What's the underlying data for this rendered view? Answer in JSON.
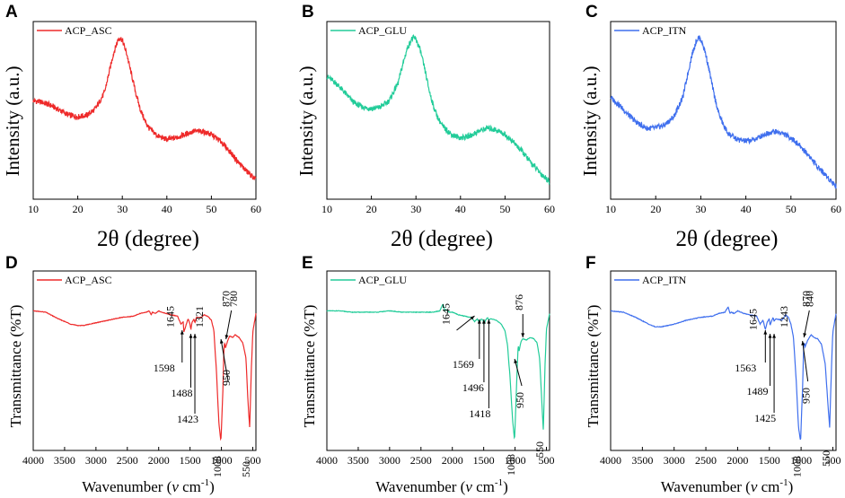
{
  "chart_data": [
    {
      "panel": "A",
      "type": "line",
      "kind": "xrd",
      "legend": "ACP_ASC",
      "color": "#ee2a2a",
      "xlabel": "2θ (degree)",
      "ylabel": "Intensity (a.u.)",
      "xlim": [
        10,
        60
      ],
      "xticks": [
        "10",
        "20",
        "30",
        "40",
        "50",
        "60"
      ],
      "x": [
        10,
        12,
        14,
        16,
        18,
        20,
        22,
        24,
        26,
        27,
        28,
        29,
        29.5,
        30,
        31,
        32,
        33,
        34,
        35,
        36,
        38,
        40,
        42,
        44,
        46,
        48,
        50,
        52,
        54,
        56,
        58,
        60
      ],
      "y": [
        0.61,
        0.6,
        0.58,
        0.55,
        0.52,
        0.51,
        0.52,
        0.56,
        0.66,
        0.78,
        0.9,
        0.985,
        1.0,
        0.985,
        0.9,
        0.78,
        0.66,
        0.56,
        0.49,
        0.44,
        0.39,
        0.37,
        0.38,
        0.4,
        0.42,
        0.42,
        0.4,
        0.36,
        0.3,
        0.23,
        0.17,
        0.12
      ],
      "ylim": [
        0,
        1.1
      ]
    },
    {
      "panel": "B",
      "type": "line",
      "kind": "xrd",
      "legend": "ACP_GLU",
      "color": "#22cc99",
      "xlabel": "2θ (degree)",
      "ylabel": "Intensity (a.u.)",
      "xlim": [
        10,
        60
      ],
      "xticks": [
        "10",
        "20",
        "30",
        "40",
        "50",
        "60"
      ],
      "x": [
        10,
        12,
        14,
        16,
        18,
        20,
        22,
        24,
        26,
        27,
        28,
        29,
        29.5,
        30,
        31,
        32,
        33,
        34,
        35,
        36,
        38,
        40,
        42,
        44,
        46,
        48,
        50,
        52,
        54,
        56,
        58,
        60
      ],
      "y": [
        0.76,
        0.72,
        0.66,
        0.6,
        0.57,
        0.56,
        0.57,
        0.61,
        0.72,
        0.83,
        0.93,
        0.99,
        1.0,
        0.99,
        0.92,
        0.8,
        0.67,
        0.57,
        0.5,
        0.45,
        0.4,
        0.38,
        0.39,
        0.42,
        0.44,
        0.43,
        0.4,
        0.35,
        0.29,
        0.22,
        0.16,
        0.11
      ],
      "ylim": [
        0,
        1.1
      ]
    },
    {
      "panel": "C",
      "type": "line",
      "kind": "xrd",
      "legend": "ACP_ITN",
      "color": "#3f6fee",
      "xlabel": "2θ (degree)",
      "ylabel": "Intensity (a.u.)",
      "xlim": [
        10,
        60
      ],
      "xticks": [
        "10",
        "20",
        "30",
        "40",
        "50",
        "60"
      ],
      "x": [
        10,
        12,
        14,
        16,
        18,
        20,
        22,
        24,
        26,
        27,
        28,
        29,
        29.5,
        30,
        31,
        32,
        33,
        34,
        35,
        36,
        38,
        40,
        42,
        44,
        46,
        48,
        50,
        52,
        54,
        56,
        58,
        60
      ],
      "y": [
        0.63,
        0.58,
        0.52,
        0.47,
        0.44,
        0.44,
        0.46,
        0.51,
        0.63,
        0.76,
        0.89,
        0.98,
        1.0,
        0.99,
        0.91,
        0.78,
        0.64,
        0.53,
        0.46,
        0.41,
        0.37,
        0.36,
        0.37,
        0.4,
        0.42,
        0.41,
        0.38,
        0.33,
        0.27,
        0.2,
        0.14,
        0.08
      ],
      "ylim": [
        0,
        1.1
      ]
    },
    {
      "panel": "D",
      "type": "line",
      "kind": "ftir",
      "legend": "ACP_ASC",
      "color": "#ee2a2a",
      "xlabel": "Wavenumber (",
      "xlabel_var": "v",
      "xlabel_unit": " cm",
      "xlabel_sup": "-1",
      "xlabel_close": ")",
      "ylabel": "Transmittance (%T)",
      "xlim": [
        4000,
        450
      ],
      "xticks": [
        "4000",
        "3500",
        "3000",
        "2500",
        "2000",
        "1500",
        "1000",
        "500"
      ],
      "x": [
        4000,
        3800,
        3600,
        3400,
        3300,
        3200,
        3000,
        2800,
        2600,
        2400,
        2300,
        2200,
        2150,
        2120,
        2100,
        2050,
        2000,
        1950,
        1800,
        1700,
        1645,
        1610,
        1598,
        1560,
        1530,
        1500,
        1488,
        1470,
        1440,
        1423,
        1400,
        1321,
        1280,
        1220,
        1160,
        1120,
        1080,
        1040,
        1008,
        975,
        960,
        950,
        935,
        905,
        870,
        820,
        780,
        720,
        660,
        610,
        580,
        550,
        520,
        500,
        450
      ],
      "y": [
        1.0,
        0.99,
        0.94,
        0.9,
        0.89,
        0.89,
        0.91,
        0.93,
        0.95,
        0.96,
        0.98,
        0.99,
        1.0,
        0.97,
        0.99,
        0.98,
        1.0,
        0.99,
        0.97,
        0.96,
        0.9,
        0.92,
        0.84,
        0.9,
        0.94,
        0.9,
        0.86,
        0.91,
        0.94,
        0.91,
        0.95,
        0.95,
        0.97,
        0.96,
        0.93,
        0.85,
        0.55,
        0.15,
        0.02,
        0.42,
        0.72,
        0.76,
        0.72,
        0.77,
        0.81,
        0.8,
        0.82,
        0.8,
        0.76,
        0.65,
        0.35,
        0.12,
        0.6,
        0.84,
        0.98
      ],
      "ylim": [
        -0.05,
        1.3
      ],
      "annotations": [
        {
          "label": "1645",
          "x": 1645
        },
        {
          "label": "1598",
          "x": 1598
        },
        {
          "label": "1488",
          "x": 1488
        },
        {
          "label": "1423",
          "x": 1423
        },
        {
          "label": "1321",
          "x": 1321
        },
        {
          "label": "1008",
          "x": 1008
        },
        {
          "label": "950",
          "x": 950
        },
        {
          "label": "870",
          "x": 870
        },
        {
          "label": "780",
          "x": 780
        },
        {
          "label": "550",
          "x": 550
        }
      ]
    },
    {
      "panel": "E",
      "type": "line",
      "kind": "ftir",
      "legend": "ACP_GLU",
      "color": "#22cc99",
      "xlabel": "Wavenumber (",
      "xlabel_var": "v",
      "xlabel_unit": " cm",
      "xlabel_sup": "-1",
      "xlabel_close": ")",
      "ylabel": "Transmittance (%T)",
      "xlim": [
        4000,
        450
      ],
      "xticks": [
        "4000",
        "3500",
        "3000",
        "2500",
        "2000",
        "1500",
        "1000",
        "500"
      ],
      "x": [
        4000,
        3800,
        3600,
        3400,
        3200,
        3000,
        2800,
        2600,
        2400,
        2300,
        2200,
        2150,
        2120,
        2100,
        2050,
        2000,
        1900,
        1800,
        1700,
        1645,
        1600,
        1569,
        1540,
        1510,
        1496,
        1470,
        1440,
        1418,
        1390,
        1300,
        1220,
        1160,
        1120,
        1080,
        1040,
        1008,
        975,
        955,
        950,
        935,
        905,
        876,
        820,
        760,
        700,
        650,
        610,
        580,
        550,
        520,
        500,
        450
      ],
      "y": [
        1.0,
        1.0,
        0.99,
        0.99,
        0.99,
        1.0,
        0.99,
        0.99,
        0.99,
        0.99,
        1.0,
        1.05,
        1.0,
        1.01,
        0.99,
        0.99,
        0.97,
        0.96,
        0.95,
        0.92,
        0.94,
        0.91,
        0.94,
        0.93,
        0.9,
        0.93,
        0.95,
        0.93,
        0.94,
        0.93,
        0.9,
        0.85,
        0.74,
        0.5,
        0.18,
        0.03,
        0.45,
        0.7,
        0.74,
        0.7,
        0.77,
        0.79,
        0.78,
        0.8,
        0.79,
        0.76,
        0.65,
        0.38,
        0.1,
        0.62,
        0.86,
        0.98
      ],
      "ylim": [
        -0.05,
        1.3
      ],
      "annotations": [
        {
          "label": "1645",
          "x": 1645
        },
        {
          "label": "1569",
          "x": 1569
        },
        {
          "label": "1496",
          "x": 1496
        },
        {
          "label": "1418",
          "x": 1418
        },
        {
          "label": "1008",
          "x": 1008
        },
        {
          "label": "950",
          "x": 950
        },
        {
          "label": "876",
          "x": 876
        },
        {
          "label": "550",
          "x": 550
        }
      ]
    },
    {
      "panel": "F",
      "type": "line",
      "kind": "ftir",
      "legend": "ACP_ITN",
      "color": "#3f6fee",
      "xlabel": "Wavenumber (",
      "xlabel_var": "v",
      "xlabel_unit": " cm",
      "xlabel_sup": "-1",
      "xlabel_close": ")",
      "ylabel": "Transmittance (%T)",
      "xlim": [
        4000,
        450
      ],
      "xticks": [
        "4000",
        "3500",
        "3000",
        "2500",
        "2000",
        "1500",
        "1000",
        "500"
      ],
      "x": [
        4000,
        3800,
        3600,
        3400,
        3300,
        3200,
        3000,
        2800,
        2600,
        2400,
        2300,
        2200,
        2150,
        2120,
        2100,
        2050,
        2000,
        1900,
        1800,
        1700,
        1645,
        1600,
        1563,
        1530,
        1500,
        1489,
        1460,
        1440,
        1425,
        1400,
        1300,
        1243,
        1200,
        1160,
        1120,
        1080,
        1040,
        1008,
        975,
        960,
        950,
        935,
        905,
        870,
        840,
        800,
        740,
        680,
        620,
        585,
        550,
        520,
        500,
        450
      ],
      "y": [
        1.0,
        0.99,
        0.95,
        0.9,
        0.88,
        0.88,
        0.9,
        0.93,
        0.95,
        0.96,
        0.98,
        0.99,
        1.03,
        0.98,
        0.99,
        0.98,
        1.0,
        0.98,
        0.97,
        0.96,
        0.9,
        0.93,
        0.86,
        0.92,
        0.94,
        0.89,
        0.93,
        0.95,
        0.92,
        0.94,
        0.93,
        0.97,
        0.95,
        0.9,
        0.8,
        0.5,
        0.12,
        0.02,
        0.45,
        0.73,
        0.76,
        0.73,
        0.77,
        0.8,
        0.82,
        0.8,
        0.79,
        0.75,
        0.6,
        0.35,
        0.12,
        0.6,
        0.84,
        0.98
      ],
      "ylim": [
        -0.05,
        1.3
      ],
      "annotations": [
        {
          "label": "1645",
          "x": 1645
        },
        {
          "label": "1563",
          "x": 1563
        },
        {
          "label": "1489",
          "x": 1489
        },
        {
          "label": "1425",
          "x": 1425
        },
        {
          "label": "1243",
          "x": 1243
        },
        {
          "label": "1008",
          "x": 1008
        },
        {
          "label": "950",
          "x": 950
        },
        {
          "label": "870",
          "x": 870
        },
        {
          "label": "840",
          "x": 840
        },
        {
          "label": "550",
          "x": 550
        }
      ]
    }
  ]
}
